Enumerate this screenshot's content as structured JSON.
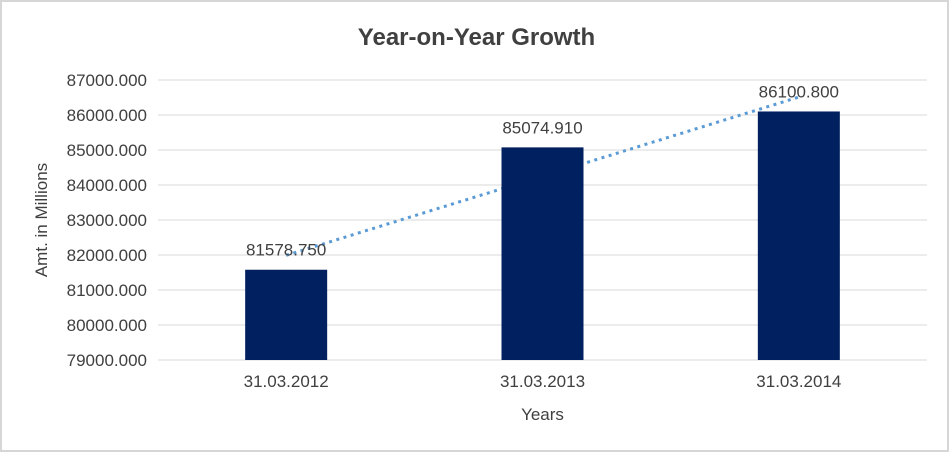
{
  "chart_data": {
    "type": "bar",
    "title": "Year-on-Year Growth",
    "categories": [
      "31.03.2012",
      "31.03.2013",
      "31.03.2014"
    ],
    "values": [
      81578.75,
      85074.91,
      86100.8
    ],
    "data_labels": [
      "81578.750",
      "85074.910",
      "86100.800"
    ],
    "xlabel": "Years",
    "ylabel": "Amt. in Millions",
    "ylim": [
      79000,
      87000
    ],
    "ytick_step": 1000,
    "ytick_labels": [
      "79000.000",
      "80000.000",
      "81000.000",
      "82000.000",
      "83000.000",
      "84000.000",
      "85000.000",
      "86000.000",
      "87000.000"
    ],
    "grid": true,
    "legend": "none",
    "trendline": {
      "type": "linear",
      "style": "dotted"
    },
    "colors": {
      "bar": "#002060",
      "trendline": "#5b9bd5",
      "gridline": "#d9d9d9",
      "text": "#404040",
      "title": "#404040",
      "background": "#ffffff",
      "border": "#d6d6d6"
    }
  }
}
